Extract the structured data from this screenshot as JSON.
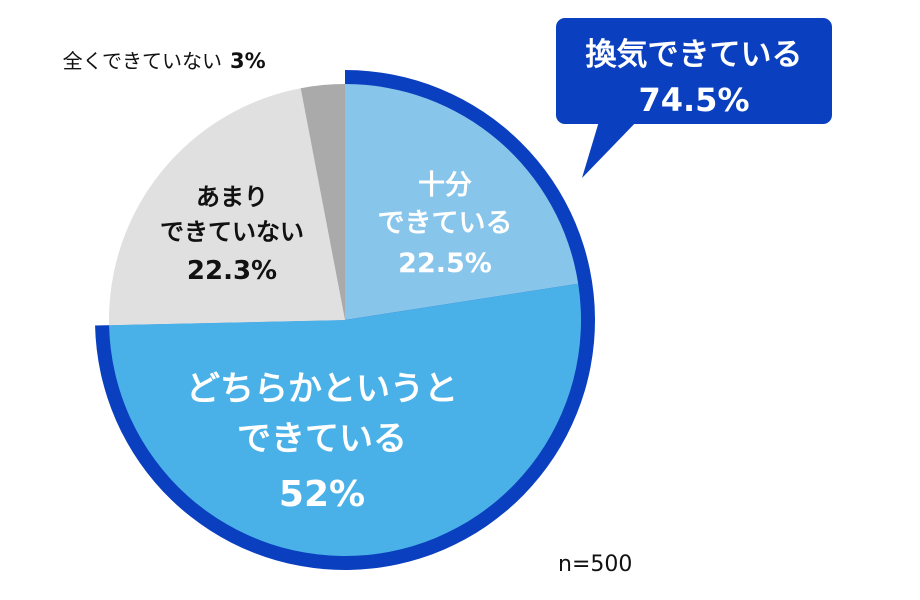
{
  "chart_data": {
    "type": "pie",
    "slices": [
      {
        "label_lines": [
          "十分",
          "できている"
        ],
        "value": 22.5,
        "value_text": "22.5%",
        "color": "#88c5ea",
        "text_color": "#ffffff"
      },
      {
        "label_lines": [
          "どちらかというと",
          "できている"
        ],
        "value": 52,
        "value_text": "52%",
        "color": "#4ab1e8",
        "text_color": "#ffffff"
      },
      {
        "label_lines": [
          "あまり",
          "できていない"
        ],
        "value": 22.3,
        "value_text": "22.3%",
        "color": "#e0e0e0",
        "text_color": "#111111"
      },
      {
        "label_lines": [
          "全くできていない"
        ],
        "value": 3,
        "value_text": "3%",
        "color": "#aaaaaa",
        "text_color": "#111111"
      }
    ],
    "group": {
      "label": "換気できている",
      "value_text": "74.5%",
      "value": 74.5,
      "color": "#0a3fbf"
    },
    "sample_note": "n=500"
  }
}
